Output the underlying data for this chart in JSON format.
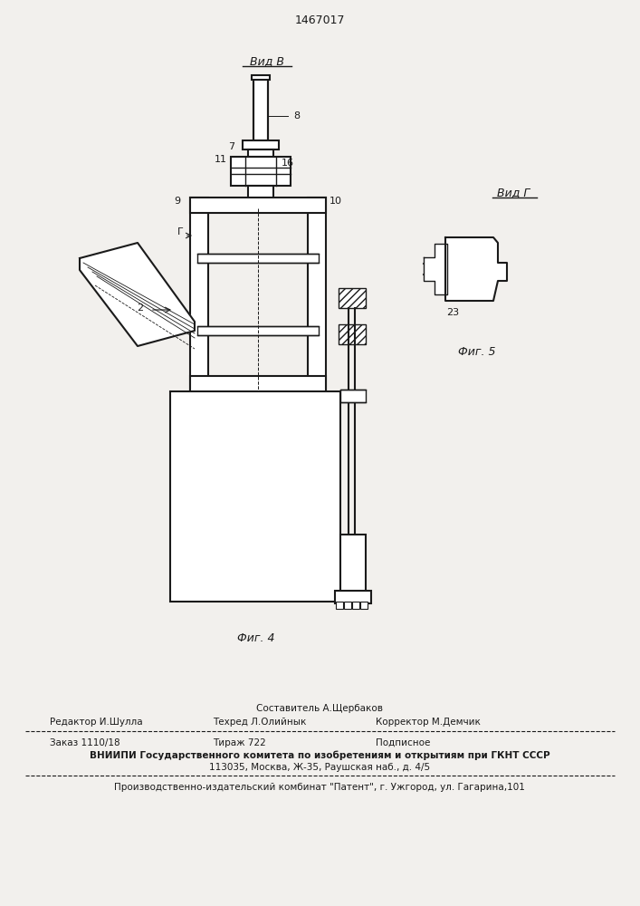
{
  "patent_number": "1467017",
  "bg_color": "#f2f0ed",
  "line_color": "#1a1a1a",
  "title_vid_b": "Вид В",
  "title_vid_g": "Вид Г",
  "fig4_label": "Фиг. 4",
  "fig5_label": "Фиг. 5",
  "footer_line1_top": "Составитель А.Щербаков",
  "footer_line1_left": "Редактор И.Шулла",
  "footer_line1_mid": "Техред Л.Олийнык",
  "footer_line1_right": "Корректор М.Демчик",
  "footer_line2_left": "Заказ 1110/18",
  "footer_line2_mid": "Тираж 722",
  "footer_line2_right": "Подписное",
  "footer_line3": "ВНИИПИ Государственного комитета по изобретениям и открытиям при ГКНТ СССР",
  "footer_line4": "113035, Москва, Ж-35, Раушская наб., д. 4/5",
  "footer_line5": "Производственно-издательский комбинат \"Патент\", г. Ужгород, ул. Гагарина,101"
}
